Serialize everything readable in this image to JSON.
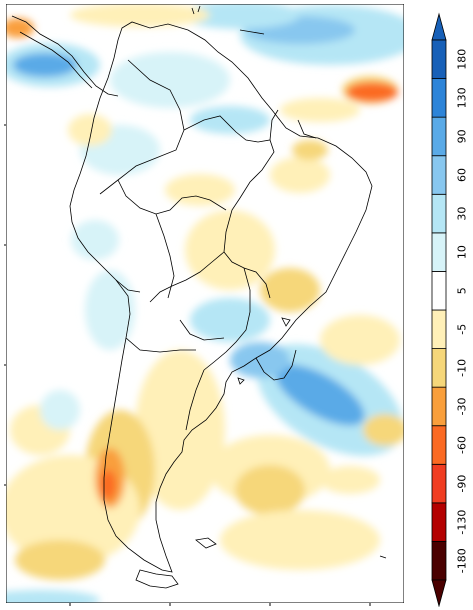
{
  "colorbar": {
    "labels": [
      "-180",
      "-130",
      "-90",
      "-60",
      "-30",
      "-10",
      "-5",
      "5",
      "10",
      "30",
      "60",
      "90",
      "130",
      "180"
    ],
    "colors": [
      "#4a0000",
      "#b30000",
      "#f03d22",
      "#fb6a23",
      "#f99f3c",
      "#f6d77a",
      "#fff0b8",
      "#ffffff",
      "#d7f3f8",
      "#b5e6f5",
      "#88c7ef",
      "#5aaae7",
      "#2d84d8",
      "#1760b8"
    ]
  },
  "palette": {
    "land_outline": "#000000",
    "background": "#ffffff"
  }
}
